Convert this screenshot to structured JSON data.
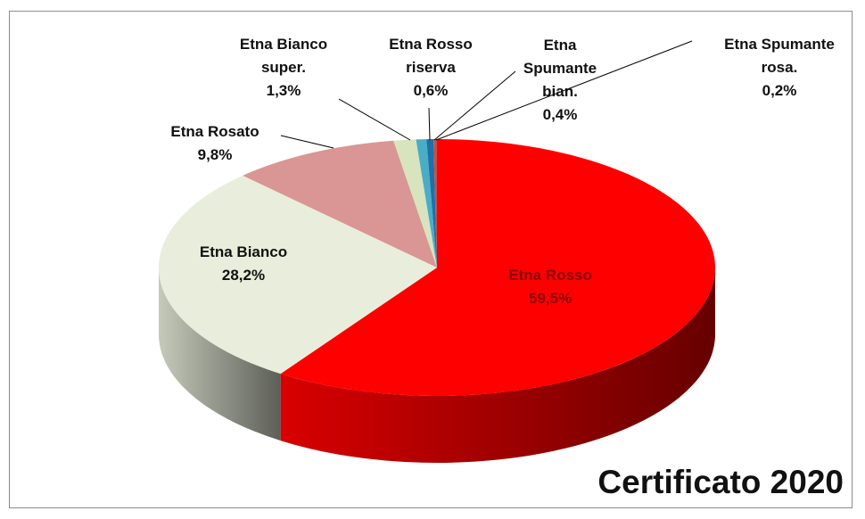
{
  "chart_data": {
    "type": "pie3d",
    "title": "Certificato 2020",
    "categories": [
      "Etna Rosso",
      "Etna Bianco",
      "Etna Rosato",
      "Etna Bianco super.",
      "Etna Rosso riserva",
      "Etna Spumante bian.",
      "Etna Spumante rosa."
    ],
    "values": [
      59.5,
      28.2,
      9.8,
      1.3,
      0.6,
      0.4,
      0.2
    ],
    "value_labels": [
      "59,5%",
      "28,2%",
      "9,8%",
      "1,3%",
      "0,6%",
      "0,4%",
      "0,2%"
    ],
    "colors": [
      "#ff0000",
      "#e8eedb",
      "#d99694",
      "#d7e4bd",
      "#4bacc6",
      "#1f6fa8",
      "#c0504d"
    ]
  }
}
